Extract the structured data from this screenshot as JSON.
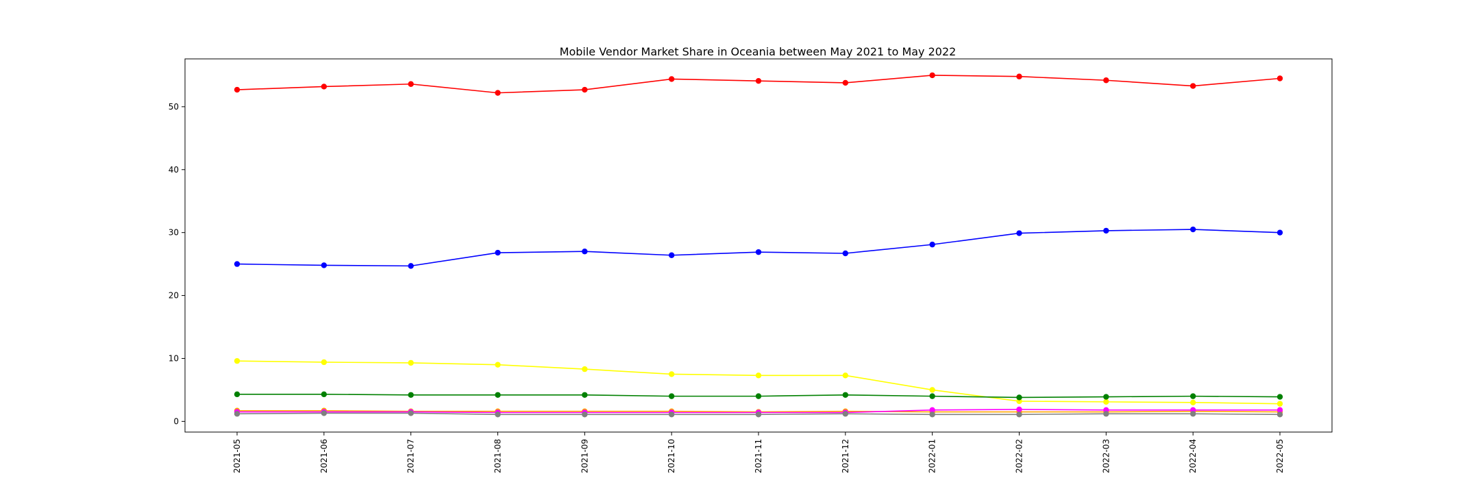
{
  "chart_data": {
    "type": "line",
    "title": "Mobile Vendor Market Share in Oceania between May 2021 to May 2022",
    "xlabel": "",
    "ylabel": "",
    "categories": [
      "2021-05",
      "2021-06",
      "2021-07",
      "2021-08",
      "2021-09",
      "2021-10",
      "2021-11",
      "2021-12",
      "2022-01",
      "2022-02",
      "2022-03",
      "2022-04",
      "2022-05"
    ],
    "y_ticks": [
      0,
      10,
      20,
      30,
      40,
      50
    ],
    "ylim": [
      -1.7,
      57.6
    ],
    "grid": false,
    "legend": "none",
    "series": [
      {
        "color": "#ff0000",
        "values": [
          52.7,
          53.2,
          53.6,
          52.2,
          52.7,
          54.4,
          54.1,
          53.8,
          55.0,
          54.8,
          54.2,
          53.3,
          54.5
        ]
      },
      {
        "color": "#0000ff",
        "values": [
          25.0,
          24.8,
          24.7,
          26.8,
          27.0,
          26.4,
          26.9,
          26.7,
          28.1,
          29.9,
          30.3,
          30.5,
          30.0
        ]
      },
      {
        "color": "#ffff00",
        "values": [
          9.6,
          9.4,
          9.3,
          9.0,
          8.3,
          7.5,
          7.3,
          7.3,
          5.0,
          3.2,
          3.1,
          3.0,
          2.8
        ]
      },
      {
        "color": "#008000",
        "values": [
          4.3,
          4.3,
          4.2,
          4.2,
          4.2,
          4.0,
          4.0,
          4.2,
          4.0,
          3.8,
          3.9,
          4.0,
          3.9
        ]
      },
      {
        "color": "#ffa500",
        "values": [
          1.7,
          1.7,
          1.6,
          1.6,
          1.6,
          1.6,
          1.5,
          1.6,
          1.5,
          1.5,
          1.5,
          1.6,
          1.5
        ]
      },
      {
        "color": "#ff00ff",
        "values": [
          1.5,
          1.5,
          1.5,
          1.4,
          1.4,
          1.4,
          1.4,
          1.4,
          1.8,
          1.9,
          1.8,
          1.8,
          1.8
        ]
      },
      {
        "color": "#808080",
        "values": [
          1.2,
          1.3,
          1.3,
          1.1,
          1.1,
          1.1,
          1.1,
          1.2,
          1.1,
          1.1,
          1.2,
          1.2,
          1.1
        ]
      }
    ]
  }
}
